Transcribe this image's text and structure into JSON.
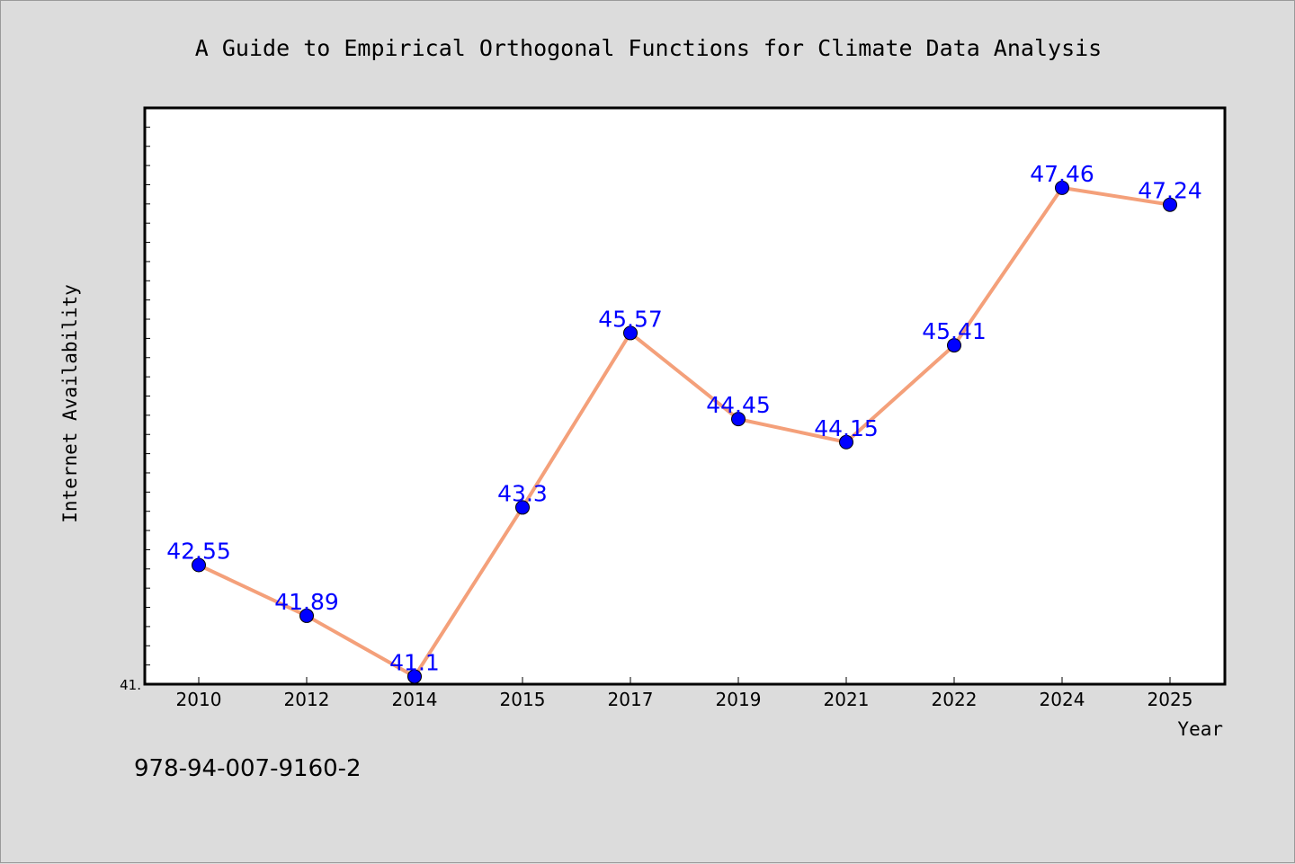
{
  "chart_data": {
    "type": "line",
    "title": "A Guide to Empirical Orthogonal Functions for Climate Data Analysis",
    "xlabel": "Year",
    "ylabel": "Internet Availability",
    "categories": [
      "2010",
      "2012",
      "2014",
      "2015",
      "2017",
      "2019",
      "2021",
      "2022",
      "2024",
      "2025"
    ],
    "series": [
      {
        "values": [
          42.55,
          41.89,
          41.1,
          43.3,
          45.57,
          44.45,
          44.15,
          45.41,
          47.46,
          47.24
        ],
        "labels": [
          "42.55",
          "41.89",
          "41.1",
          "43.3",
          "45.57",
          "44.45",
          "44.15",
          "45.41",
          "47.46",
          "47.24"
        ]
      }
    ],
    "ylim": [
      41.0,
      48.5
    ],
    "yticks_labeled": [
      "41."
    ],
    "grid": false,
    "line_color": "#f4a07a",
    "marker_color": "#0000ff",
    "background_color": "#dcdcdc",
    "plot_background_color": "#ffffff"
  },
  "footer": {
    "isbn": "978-94-007-9160-2"
  }
}
